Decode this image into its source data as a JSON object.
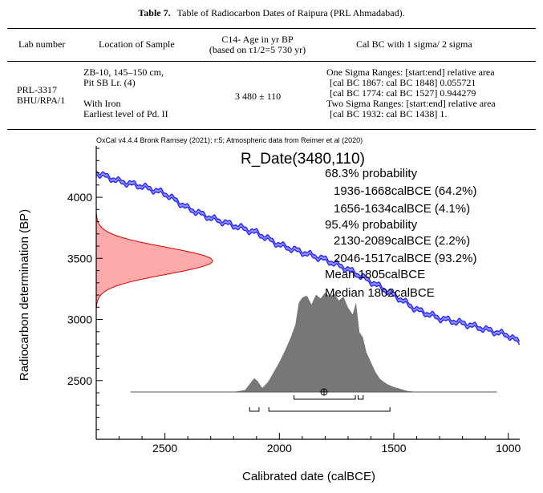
{
  "table": {
    "label": "Table 7.",
    "caption": "Table of Radiocarbon Dates of Raipura (PRL Ahmadabad).",
    "headers": {
      "lab_number": "Lab number",
      "location": "Location of Sample",
      "age_line1": "C14- Age in yr BP",
      "age_line2": "(based on τ1/2=5 730 yr)",
      "cal": "Cal BC with 1 sigma/ 2 sigma"
    },
    "row": {
      "lab_line1": "PRL-3317",
      "lab_line2": "BHU/RPA/1",
      "loc_line1": "ZB-10, 145–150 cm,",
      "loc_line2": "Pit SB Lr. (4)",
      "loc_line3": "With Iron",
      "loc_line4": "Earliest level of Pd. II",
      "age": "3 480 ± 110",
      "cal_line1": "One Sigma Ranges: [start:end] relative area",
      "cal_line2": "[cal BC 1867: cal BC 1848] 0.055721",
      "cal_line3": "[cal BC 1774: cal BC 1527] 0.944279",
      "cal_line4": "Two Sigma Ranges: [start:end] relative area",
      "cal_line5": "[cal BC 1932: cal BC 1438] 1."
    }
  },
  "chart_data": {
    "type": "line",
    "credit": "OxCal v4.4.4 Bronk Ramsey (2021); r:5; Atmospheric data from Reimer et al (2020)",
    "title": "R_Date(3480,110)",
    "xlabel": "Calibrated date (calBCE)",
    "ylabel": "Radiocarbon determination (BP)",
    "xlim": [
      2800,
      950
    ],
    "ylim": [
      2020,
      4420
    ],
    "x_ticks": [
      2500,
      2000,
      1500,
      1000
    ],
    "y_ticks": [
      2500,
      3000,
      3500,
      4000
    ],
    "annotations": [
      "68.3% probability",
      "1936-1668calBCE (64.2%)",
      "1656-1634calBCE (4.1%)",
      "95.4% probability",
      "2130-2089calBCE (2.2%)",
      "2046-1517calBCE (93.2%)",
      "Mean 1805calBCE",
      "Median 1802calBCE"
    ],
    "radiocarbon_date": {
      "mean": 3480,
      "sigma": 110
    },
    "calibration_curve": {
      "x": [
        2800,
        2700,
        2600,
        2500,
        2400,
        2300,
        2200,
        2100,
        2000,
        1900,
        1800,
        1700,
        1600,
        1500,
        1400,
        1300,
        1200,
        1100,
        1000,
        950
      ],
      "y": [
        4200,
        4130,
        4090,
        4030,
        3910,
        3830,
        3770,
        3710,
        3610,
        3550,
        3490,
        3410,
        3310,
        3200,
        3080,
        3010,
        2970,
        2920,
        2870,
        2810
      ]
    },
    "posterior_distribution": {
      "x": [
        2200,
        2150,
        2130,
        2110,
        2095,
        2075,
        2050,
        2030,
        2000,
        1975,
        1950,
        1930,
        1915,
        1900,
        1880,
        1860,
        1840,
        1820,
        1800,
        1780,
        1760,
        1740,
        1720,
        1700,
        1680,
        1665,
        1650,
        1635,
        1620,
        1600,
        1580,
        1560,
        1530,
        1500,
        1470,
        1440,
        1400
      ],
      "density": [
        0,
        0.02,
        0.08,
        0.14,
        0.11,
        0.04,
        0.1,
        0.18,
        0.3,
        0.42,
        0.55,
        0.68,
        0.9,
        0.95,
        0.97,
        0.88,
        0.98,
        0.94,
        1.0,
        0.96,
        0.99,
        0.92,
        0.96,
        0.85,
        0.78,
        0.9,
        0.6,
        0.55,
        0.4,
        0.3,
        0.2,
        0.13,
        0.08,
        0.05,
        0.03,
        0.01,
        0
      ],
      "baseline_range": [
        2650,
        1050
      ]
    },
    "ranges_68": [
      [
        1936,
        1668
      ],
      [
        1656,
        1634
      ]
    ],
    "ranges_95": [
      [
        2130,
        2089
      ],
      [
        2046,
        1517
      ]
    ],
    "mean": 1805,
    "colors": {
      "curve": "#1f1fff",
      "curve_band": "#8f8fff",
      "date_fill": "#ffaaaa",
      "date_line": "#e00000",
      "posterior": "#777777"
    }
  }
}
